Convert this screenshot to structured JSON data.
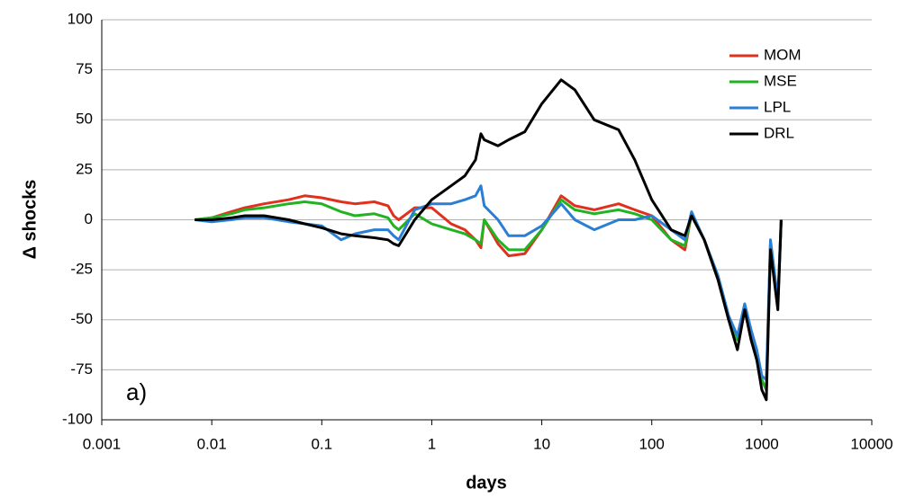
{
  "chart_data": {
    "type": "line",
    "xlabel": "days",
    "ylabel": "Δ shocks",
    "annotation": "a)",
    "x": [
      0.007,
      0.01,
      0.015,
      0.02,
      0.03,
      0.05,
      0.07,
      0.1,
      0.15,
      0.2,
      0.3,
      0.4,
      0.45,
      0.5,
      0.7,
      1,
      1.5,
      2,
      2.5,
      2.8,
      3,
      4,
      5,
      7,
      10,
      15,
      20,
      30,
      50,
      70,
      100,
      150,
      200,
      230,
      300,
      400,
      500,
      600,
      700,
      800,
      900,
      1000,
      1100,
      1200,
      1400,
      1500
    ],
    "series": [
      {
        "name": "MOM",
        "color": "#e0301e",
        "values": [
          0,
          1,
          4,
          6,
          8,
          10,
          12,
          11,
          9,
          8,
          9,
          7,
          2,
          0,
          6,
          6,
          -2,
          -5,
          -10,
          -14,
          0,
          -12,
          -18,
          -17,
          -5,
          12,
          7,
          5,
          8,
          5,
          2,
          -10,
          -15,
          3,
          -10,
          -30,
          -50,
          -60,
          -45,
          -60,
          -70,
          -80,
          -85,
          -12,
          -42,
          0
        ]
      },
      {
        "name": "MSE",
        "color": "#22b322",
        "values": [
          0,
          1,
          3,
          5,
          6,
          8,
          9,
          8,
          4,
          2,
          3,
          1,
          -3,
          -5,
          3,
          -2,
          -5,
          -7,
          -10,
          -12,
          0,
          -10,
          -15,
          -15,
          -5,
          10,
          5,
          3,
          5,
          3,
          0,
          -10,
          -13,
          3,
          -10,
          -30,
          -50,
          -60,
          -45,
          -58,
          -70,
          -80,
          -85,
          -12,
          -42,
          0
        ]
      },
      {
        "name": "LPL",
        "color": "#2a7fd4",
        "values": [
          0,
          -1,
          0,
          1,
          1,
          -1,
          -2,
          -3,
          -10,
          -7,
          -5,
          -5,
          -8,
          -10,
          5,
          8,
          8,
          10,
          12,
          17,
          7,
          0,
          -8,
          -8,
          -3,
          8,
          0,
          -5,
          0,
          0,
          2,
          -5,
          -10,
          4,
          -10,
          -28,
          -48,
          -58,
          -42,
          -55,
          -65,
          -78,
          -80,
          -10,
          -40,
          0
        ]
      },
      {
        "name": "DRL",
        "color": "#000000",
        "values": [
          0,
          0,
          1,
          2,
          2,
          0,
          -2,
          -4,
          -7,
          -8,
          -9,
          -10,
          -12,
          -13,
          0,
          10,
          17,
          22,
          30,
          43,
          40,
          37,
          40,
          44,
          58,
          70,
          65,
          50,
          45,
          30,
          10,
          -5,
          -8,
          2,
          -10,
          -30,
          -50,
          -65,
          -45,
          -60,
          -70,
          -85,
          -90,
          -15,
          -45,
          0
        ]
      }
    ],
    "xlim": [
      0.001,
      10000
    ],
    "xticks": [
      0.001,
      0.01,
      0.1,
      1,
      10,
      100,
      1000,
      10000
    ],
    "xscale": "log",
    "ylim": [
      -100,
      100
    ],
    "yticks": [
      -100,
      -75,
      -50,
      -25,
      0,
      25,
      50,
      75,
      100
    ],
    "grid": true,
    "legend": "upper right"
  }
}
